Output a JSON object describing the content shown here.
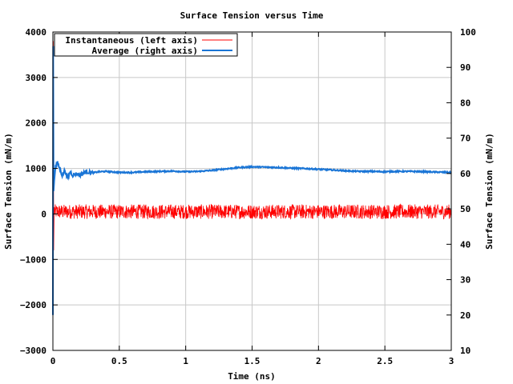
{
  "chart_data": {
    "type": "line",
    "title": "Surface Tension versus Time",
    "xlabel": "Time (ns)",
    "ylabel_left": "Surface Tension (mN/m)",
    "ylabel_right": "Surface Tension (mN/m)",
    "xlim": [
      0,
      3
    ],
    "ylim_left": [
      -3000,
      4000
    ],
    "ylim_right": [
      10,
      100
    ],
    "x_ticks": [
      "0",
      "0.5",
      "1",
      "1.5",
      "2",
      "2.5",
      "3"
    ],
    "y_ticks_left": [
      "−3000",
      "−2000",
      "−1000",
      "0",
      "1000",
      "2000",
      "3000",
      "4000"
    ],
    "y_ticks_right": [
      "10",
      "20",
      "30",
      "40",
      "50",
      "60",
      "70",
      "80",
      "90",
      "100"
    ],
    "grid": true,
    "legend_position": "top-left",
    "series": [
      {
        "name": "Instantaneous (left axis)",
        "axis": "left",
        "color": "#ff0000",
        "mean": 50,
        "noise_amplitude": 160,
        "initial_transient": [
          [
            0.0,
            -2300
          ],
          [
            0.003,
            3800
          ],
          [
            0.006,
            -800
          ],
          [
            0.01,
            150
          ]
        ]
      },
      {
        "name": "Average (right axis)",
        "axis": "right",
        "color": "#1a75d6",
        "points": [
          [
            0.0,
            20
          ],
          [
            0.002,
            96
          ],
          [
            0.005,
            55
          ],
          [
            0.01,
            58
          ],
          [
            0.02,
            62
          ],
          [
            0.035,
            63
          ],
          [
            0.05,
            61.5
          ],
          [
            0.07,
            59.5
          ],
          [
            0.09,
            61
          ],
          [
            0.11,
            58.5
          ],
          [
            0.13,
            60.5
          ],
          [
            0.15,
            59.5
          ],
          [
            0.18,
            60
          ],
          [
            0.2,
            59.5
          ],
          [
            0.25,
            60.5
          ],
          [
            0.3,
            60.2
          ],
          [
            0.35,
            60.5
          ],
          [
            0.4,
            60.6
          ],
          [
            0.5,
            60.3
          ],
          [
            0.6,
            60.3
          ],
          [
            0.7,
            60.5
          ],
          [
            0.8,
            60.6
          ],
          [
            0.9,
            60.7
          ],
          [
            1.0,
            60.5
          ],
          [
            1.1,
            60.6
          ],
          [
            1.2,
            60.9
          ],
          [
            1.3,
            61.3
          ],
          [
            1.4,
            61.7
          ],
          [
            1.5,
            61.9
          ],
          [
            1.6,
            61.8
          ],
          [
            1.7,
            61.7
          ],
          [
            1.8,
            61.5
          ],
          [
            1.9,
            61.4
          ],
          [
            2.0,
            61.2
          ],
          [
            2.1,
            61.0
          ],
          [
            2.2,
            60.8
          ],
          [
            2.3,
            60.6
          ],
          [
            2.4,
            60.6
          ],
          [
            2.5,
            60.5
          ],
          [
            2.6,
            60.6
          ],
          [
            2.7,
            60.6
          ],
          [
            2.8,
            60.5
          ],
          [
            2.9,
            60.4
          ],
          [
            3.0,
            60.3
          ]
        ]
      }
    ]
  }
}
